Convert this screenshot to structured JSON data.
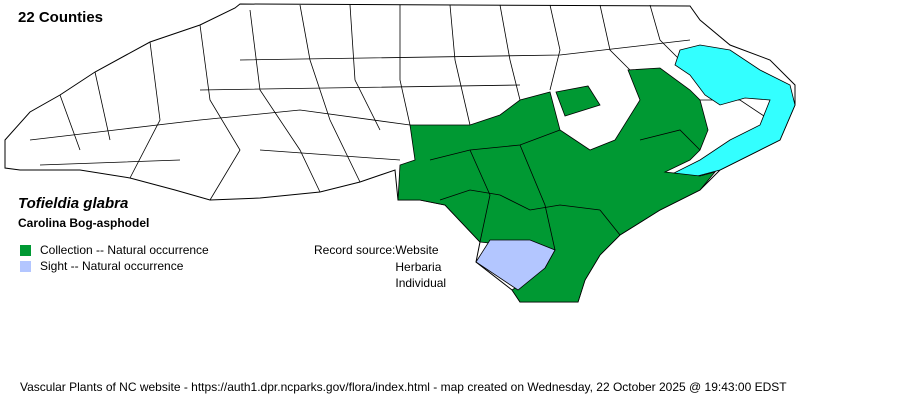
{
  "header": {
    "county_count": "22 Counties"
  },
  "species": {
    "scientific_name": "Tofieldia glabra",
    "common_name": "Carolina Bog-asphodel"
  },
  "legend": [
    {
      "label": "Collection -- Natural occurrence",
      "color": "#009933"
    },
    {
      "label": "Sight -- Natural occurrence",
      "color": "#b3c6ff"
    }
  ],
  "record_source": {
    "label": "Record source:",
    "values": [
      "Website",
      "Herbaria",
      "Individual"
    ]
  },
  "map": {
    "water_color": "#33ffff",
    "county_outline_color": "#000000",
    "empty_county_color": "#ffffff"
  },
  "footer": "Vascular Plants of NC website - https://auth1.dpr.ncparks.gov/flora/index.html - map created on Wednesday, 22 October 2025 @ 19:43:00 EDST"
}
